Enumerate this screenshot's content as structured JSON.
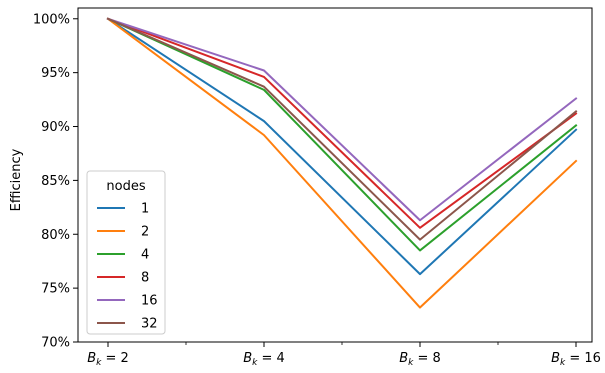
{
  "chart_data": {
    "type": "line",
    "title": "",
    "xlabel": "",
    "ylabel": "Efficiency",
    "categories": [
      "B_k = 2",
      "B_k = 4",
      "B_k = 8",
      "B_k = 16"
    ],
    "category_ticks": [
      {
        "base": "B",
        "sub": "k",
        "value": "2"
      },
      {
        "base": "B",
        "sub": "k",
        "value": "4"
      },
      {
        "base": "B",
        "sub": "k",
        "value": "8"
      },
      {
        "base": "B",
        "sub": "k",
        "value": "16"
      }
    ],
    "ylim": [
      70,
      101
    ],
    "y_ticks": [
      70,
      75,
      80,
      85,
      90,
      95,
      100
    ],
    "y_tick_labels": [
      "70%",
      "75%",
      "80%",
      "85%",
      "90%",
      "95%",
      "100%"
    ],
    "grid": false,
    "legend": {
      "title": "nodes",
      "placement": "lower-left"
    },
    "series": [
      {
        "name": "1",
        "color": "#1f77b4",
        "values": [
          100,
          90.5,
          76.3,
          89.7
        ]
      },
      {
        "name": "2",
        "color": "#ff7f0e",
        "values": [
          100,
          89.2,
          73.2,
          86.8
        ]
      },
      {
        "name": "4",
        "color": "#2ca02c",
        "values": [
          100,
          93.4,
          78.5,
          90.1
        ]
      },
      {
        "name": "8",
        "color": "#d62728",
        "values": [
          100,
          94.6,
          80.6,
          91.2
        ]
      },
      {
        "name": "16",
        "color": "#9467bd",
        "values": [
          100,
          95.2,
          81.3,
          92.6
        ]
      },
      {
        "name": "32",
        "color": "#8c564b",
        "values": [
          100,
          93.7,
          79.5,
          91.4
        ]
      }
    ]
  }
}
